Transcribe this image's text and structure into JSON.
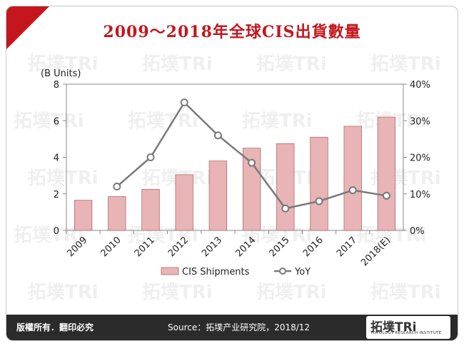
{
  "header": {
    "title": "2009～2018年全球CIS出貨數量"
  },
  "footer": {
    "rights": "版權所有．翻印必究",
    "source": "Source：拓墣产业研究院，2018/12",
    "logo_main": "拓墣TRi",
    "logo_sub": "TOPOLOGY RESEARCH INSTITUTE"
  },
  "watermark": {
    "text": "拓墣TRi"
  },
  "colors": {
    "bar": "#e8b4b5",
    "bar_stroke": "#b06a6c",
    "line": "#7a7a7a",
    "title": "#c4161c"
  },
  "chart_data": {
    "type": "bar",
    "categories": [
      "2009",
      "2010",
      "2011",
      "2012",
      "2013",
      "2014",
      "2015",
      "2016",
      "2017",
      "2018(E)"
    ],
    "series": [
      {
        "name": "CIS Shipments",
        "type": "bar",
        "axis": "left",
        "values": [
          1.65,
          1.85,
          2.25,
          3.05,
          3.8,
          4.5,
          4.75,
          5.1,
          5.7,
          6.2
        ]
      },
      {
        "name": "YoY",
        "type": "line",
        "axis": "right",
        "values": [
          null,
          12,
          20,
          35,
          26,
          18.5,
          6,
          8,
          11,
          9.5
        ]
      }
    ],
    "ylabel": "(B Units)",
    "ylim": [
      0,
      8
    ],
    "yticks": [
      "0",
      "2",
      "4",
      "6",
      "8"
    ],
    "y2lim": [
      0,
      40
    ],
    "y2ticks": [
      "0%",
      "10%",
      "20%",
      "30%",
      "40%"
    ],
    "legend": "bottom"
  }
}
